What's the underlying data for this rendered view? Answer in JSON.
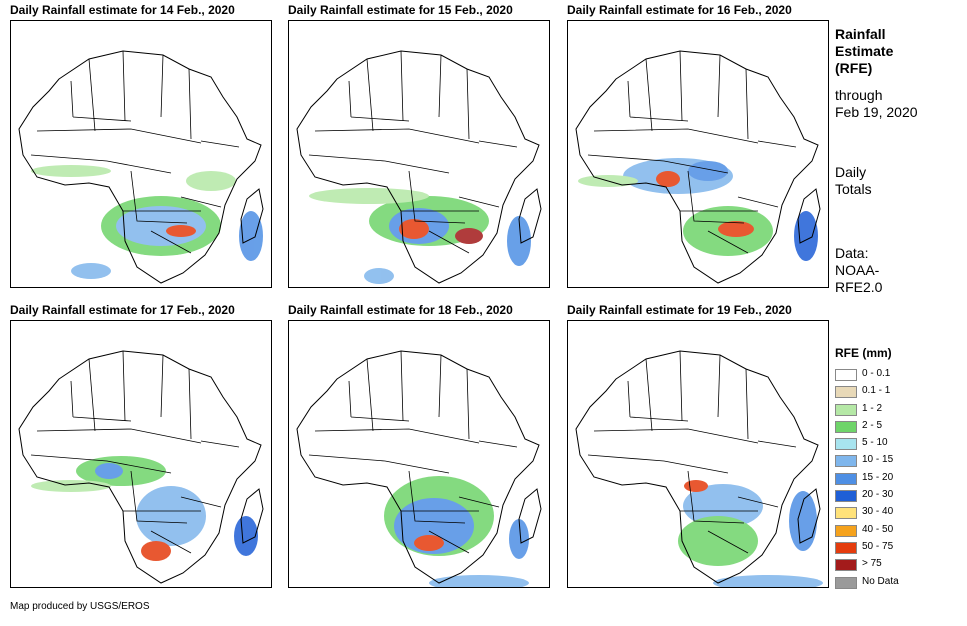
{
  "panels": [
    {
      "title": "Daily Rainfall estimate for 14 Feb., 2020"
    },
    {
      "title": "Daily Rainfall estimate for 15 Feb., 2020"
    },
    {
      "title": "Daily Rainfall estimate for 16 Feb., 2020"
    },
    {
      "title": "Daily Rainfall estimate for 17 Feb., 2020"
    },
    {
      "title": "Daily Rainfall estimate for 18 Feb., 2020"
    },
    {
      "title": "Daily Rainfall estimate for 19 Feb., 2020"
    }
  ],
  "sidebar": {
    "title_lines": [
      "Rainfall",
      "Estimate",
      "(RFE)"
    ],
    "through_lines": [
      "through",
      "Feb 19, 2020"
    ],
    "totals_lines": [
      "Daily",
      "Totals"
    ],
    "data_lines": [
      "Data:",
      "NOAA-",
      "RFE2.0"
    ]
  },
  "legend": {
    "title": "RFE (mm)",
    "items": [
      {
        "label": "0 - 0.1",
        "color": "#ffffff"
      },
      {
        "label": "0.1 - 1",
        "color": "#e8d9b8"
      },
      {
        "label": "1 - 2",
        "color": "#b5e8a6"
      },
      {
        "label": "2 - 5",
        "color": "#6fd46a"
      },
      {
        "label": "5 - 10",
        "color": "#a8e4ef"
      },
      {
        "label": "10 - 15",
        "color": "#7fb6ec"
      },
      {
        "label": "15 - 20",
        "color": "#4e8fe4"
      },
      {
        "label": "20 - 30",
        "color": "#1f5fd6"
      },
      {
        "label": "30 - 40",
        "color": "#ffe27a"
      },
      {
        "label": "40 - 50",
        "color": "#f5a21c"
      },
      {
        "label": "50 - 75",
        "color": "#e43c0e"
      },
      {
        "label": "> 75",
        "color": "#a31b1b"
      },
      {
        "label": "No Data",
        "color": "#9a9a9a"
      }
    ]
  },
  "credit": "Map produced by USGS/EROS"
}
